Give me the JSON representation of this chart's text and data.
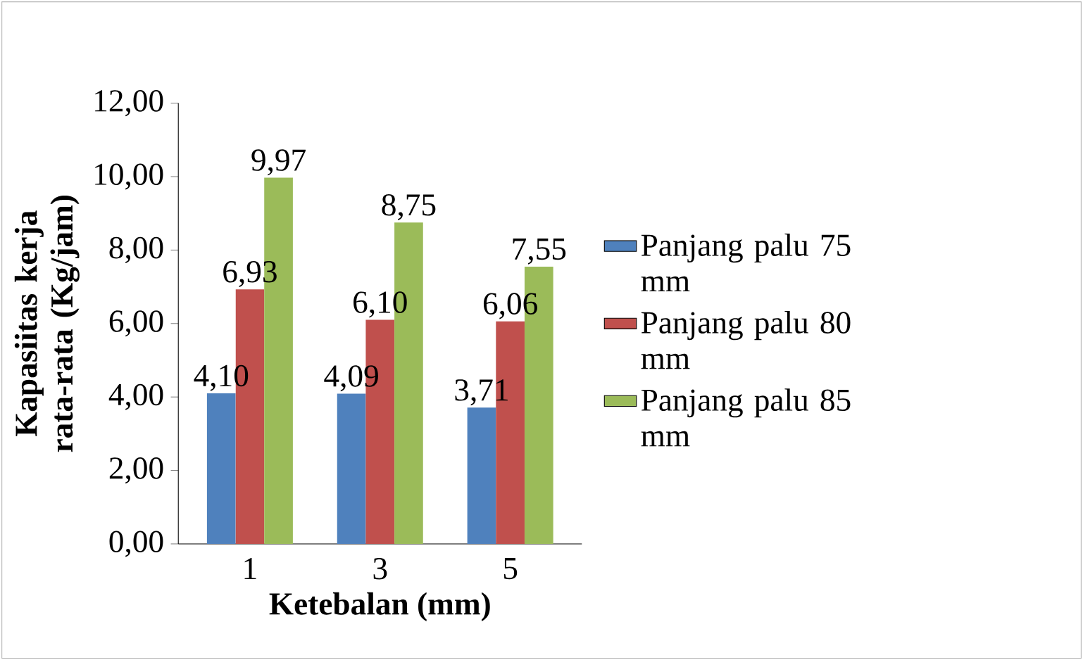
{
  "chart_data": {
    "type": "bar",
    "xlabel": "Ketebalan (mm)",
    "ylabel": "Kapasiitas kerja rata-rata (Kg/jam)",
    "categories": [
      "1",
      "3",
      "5"
    ],
    "series": [
      {
        "name": "Panjang palu 75 mm",
        "color": "#4f81bd",
        "values": [
          4.1,
          4.09,
          3.71
        ],
        "value_labels": [
          "4,10",
          "4,09",
          "3,71"
        ]
      },
      {
        "name": "Panjang palu 80 mm",
        "color": "#c0504d",
        "values": [
          6.93,
          6.1,
          6.06
        ],
        "value_labels": [
          "6,93",
          "6,10",
          "6,06"
        ]
      },
      {
        "name": "Panjang palu 85 mm",
        "color": "#9bbb59",
        "values": [
          9.97,
          8.75,
          7.55
        ],
        "value_labels": [
          "9,97",
          "8,75",
          "7,55"
        ]
      }
    ],
    "ylim": [
      0,
      12
    ],
    "yticks": [
      {
        "value": 0,
        "label": "0,00"
      },
      {
        "value": 2,
        "label": "2,00"
      },
      {
        "value": 4,
        "label": "4,00"
      },
      {
        "value": 6,
        "label": "6,00"
      },
      {
        "value": 8,
        "label": "8,00"
      },
      {
        "value": 10,
        "label": "10,00"
      },
      {
        "value": 12,
        "label": "12,00"
      }
    ],
    "grid": false,
    "legend": "right"
  }
}
